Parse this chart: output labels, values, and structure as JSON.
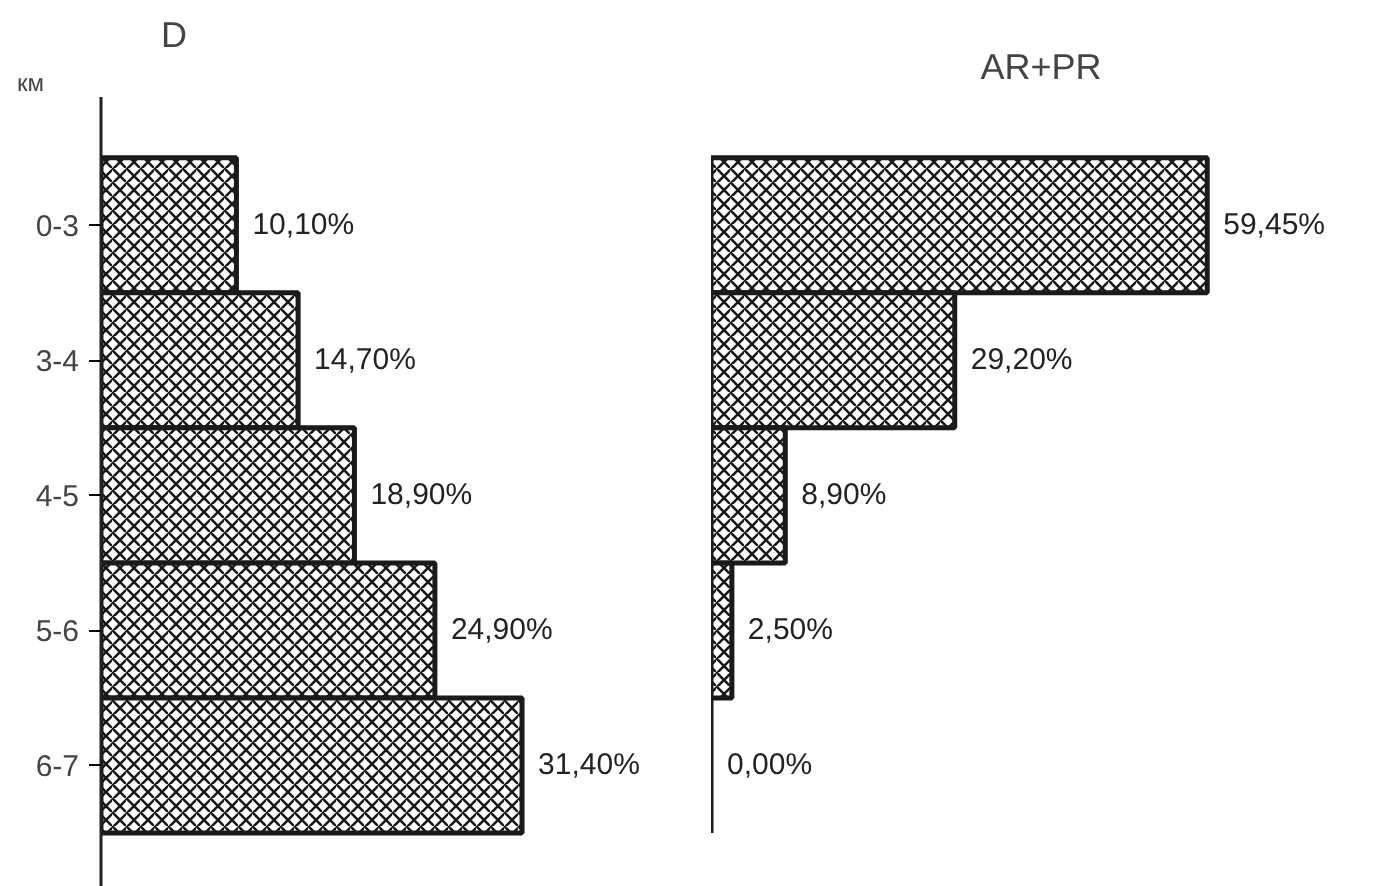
{
  "chart_data": [
    {
      "type": "bar",
      "orientation": "horizontal",
      "title": "D",
      "ylabel": "км",
      "tick_labels": "y",
      "color": "#1a1a1a",
      "categories": [
        "0-3",
        "3-4",
        "4-5",
        "5-6",
        "6-7"
      ],
      "values": [
        10.1,
        14.7,
        18.9,
        24.9,
        31.4
      ],
      "value_labels": [
        "10,10%",
        "14,70%",
        "18,90%",
        "24,90%",
        "31,40%"
      ]
    },
    {
      "type": "bar",
      "orientation": "horizontal",
      "title": "AR+PR",
      "tick_labels": false,
      "color": "#1a1a1a",
      "categories": [
        null,
        null,
        null,
        null,
        null
      ],
      "values": [
        59.45,
        29.2,
        8.9,
        2.5,
        0.0
      ],
      "value_labels": [
        "59,45%",
        "29,20%",
        "8,90%",
        "2,50%",
        "0,00%"
      ]
    }
  ]
}
